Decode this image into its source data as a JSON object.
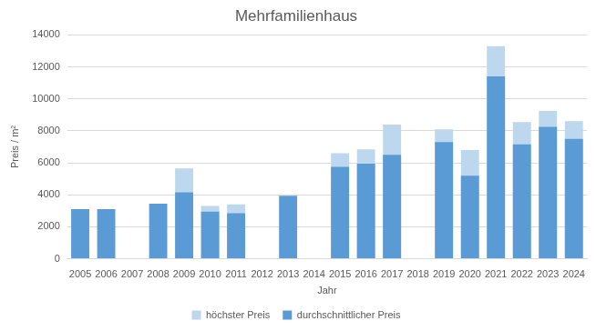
{
  "chart_data": {
    "type": "bar",
    "title": "Mehrfamilienhaus",
    "x_label": "Jahr",
    "y_label": "Preis / m²",
    "categories": [
      "2005",
      "2006",
      "2007",
      "2008",
      "2009",
      "2010",
      "2011",
      "2012",
      "2013",
      "2014",
      "2015",
      "2016",
      "2017",
      "2018",
      "2019",
      "2020",
      "2021",
      "2022",
      "2023",
      "2024"
    ],
    "series": [
      {
        "name": "höchster Preis",
        "color": "#bdd7ee",
        "values": [
          null,
          null,
          null,
          null,
          5650,
          3300,
          3400,
          null,
          null,
          null,
          6600,
          6850,
          8400,
          null,
          8100,
          6800,
          13300,
          8550,
          9250,
          8600
        ]
      },
      {
        "name": "durchschnittlicher Preis",
        "color": "#5b9bd5",
        "values": [
          3100,
          3100,
          null,
          3450,
          4150,
          2950,
          2850,
          null,
          3950,
          null,
          5750,
          5950,
          6500,
          null,
          7300,
          5200,
          11400,
          7150,
          8250,
          7500
        ]
      }
    ],
    "ylim": [
      0,
      14000
    ],
    "yticks": [
      0,
      2000,
      4000,
      6000,
      8000,
      10000,
      12000,
      14000
    ],
    "grid": true,
    "legend": "bottom"
  }
}
